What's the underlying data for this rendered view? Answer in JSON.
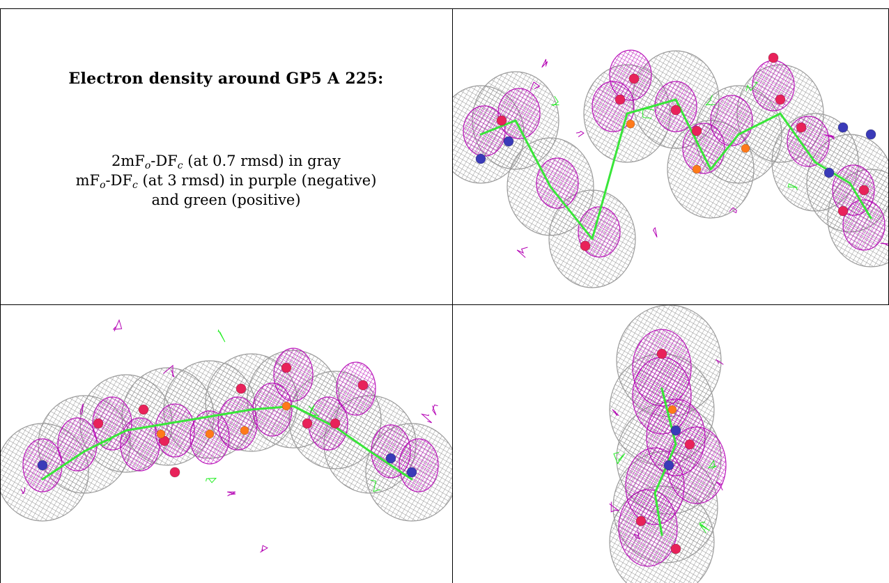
{
  "caption": {
    "title": "Electron density around GP5 A 225:",
    "line1": {
      "prefix": "2mF",
      "sub1": "o",
      "mid": "-DF",
      "sub2": "c",
      "suffix": " (at 0.7 rmsd) in gray"
    },
    "line2": {
      "prefix": "mF",
      "sub1": "o",
      "mid": "-DF",
      "sub2": "c",
      "suffix": " (at 3 rmsd) in purple (negative)"
    },
    "line3": "and green (positive)"
  },
  "panels": [
    {
      "view": "top-right",
      "shape": "zigzag-horizontal"
    },
    {
      "view": "bottom-left",
      "shape": "arc-horizontal"
    },
    {
      "view": "bottom-right",
      "shape": "end-on"
    }
  ],
  "colors": {
    "mesh_2fofc": "#8c8c8c",
    "mesh_negative": "#b400b4",
    "mesh_positive": "#22ee22",
    "atom_oxygen": "#e8225a",
    "atom_nitrogen": "#3a3ab8",
    "atom_phosphorus": "#ff7a1a",
    "bond_carbon": "#39e639"
  }
}
